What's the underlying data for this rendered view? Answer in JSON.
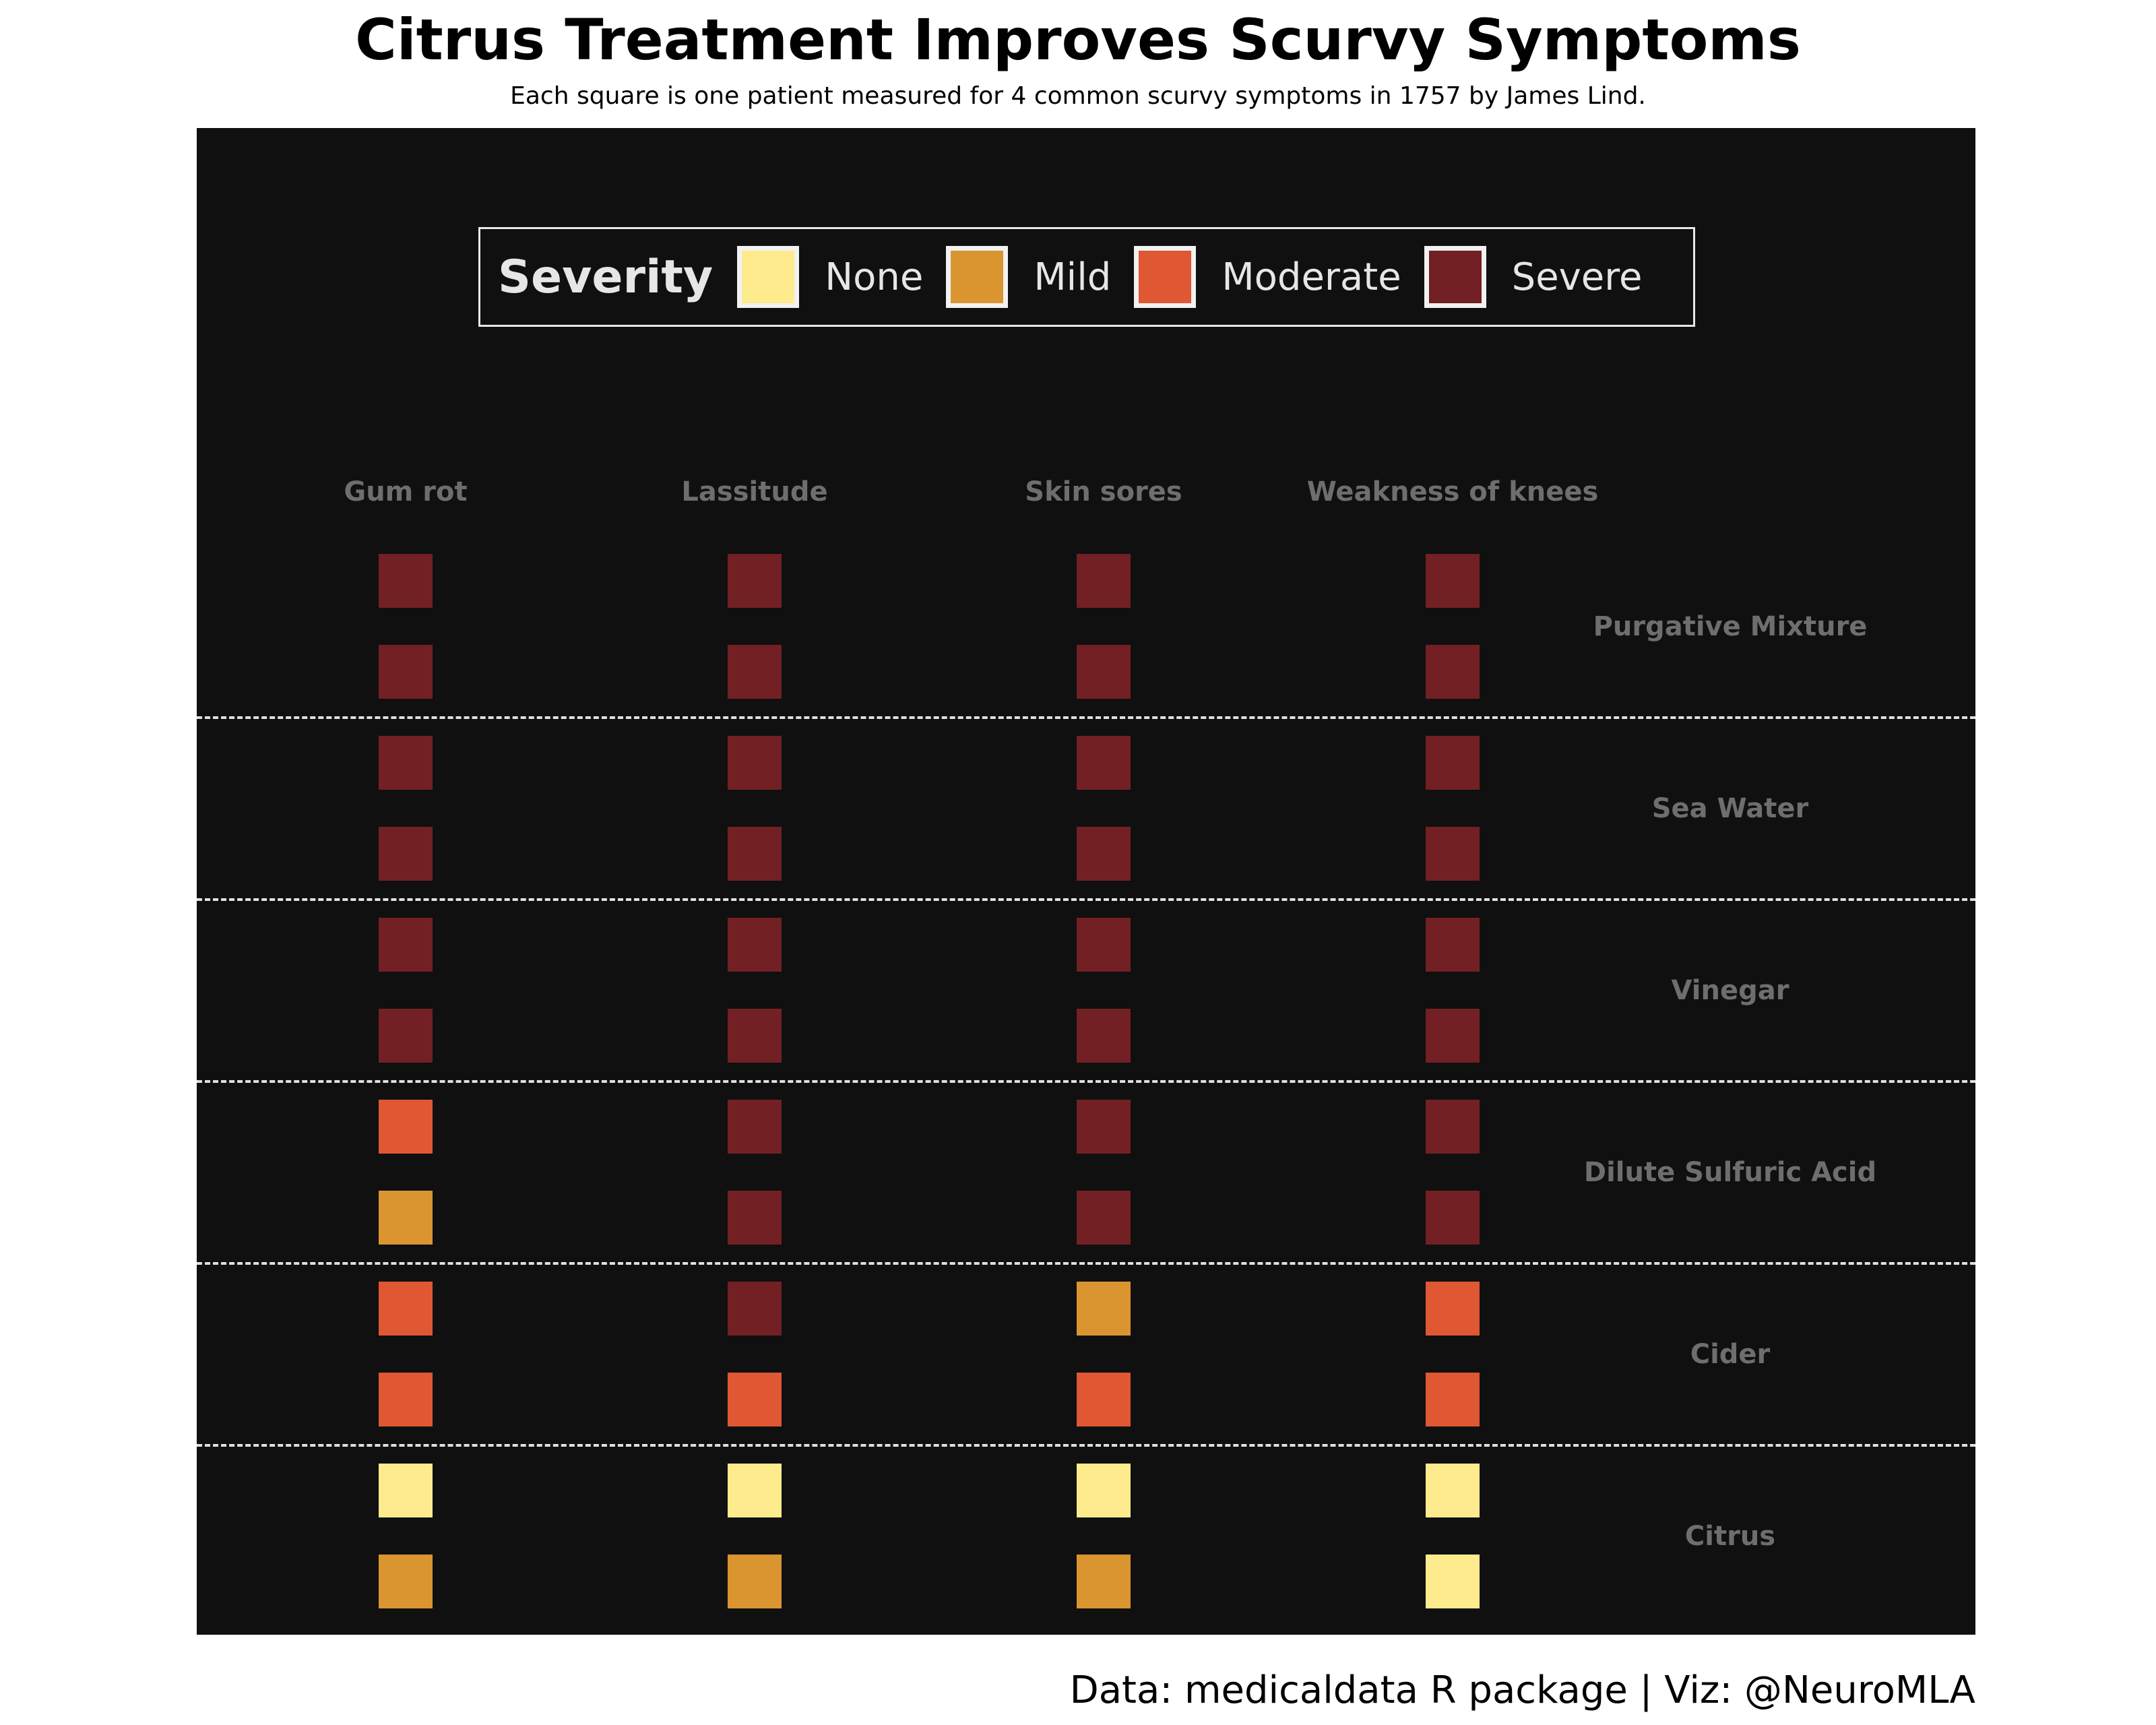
{
  "title": "Citrus Treatment Improves Scurvy Symptoms",
  "subtitle": "Each square is one patient measured for 4 common scurvy symptoms in 1757 by James Lind.",
  "caption": "Data: medicaldata R package | Viz: @NeuroMLA",
  "legend": {
    "title": "Severity",
    "items": [
      {
        "label": "None",
        "color": "#fdeb8e"
      },
      {
        "label": "Mild",
        "color": "#db9530"
      },
      {
        "label": "Moderate",
        "color": "#e05733"
      },
      {
        "label": "Severe",
        "color": "#722023"
      }
    ]
  },
  "colors": {
    "panel_background": "#101010",
    "label_text": "#6e6e6e",
    "divider": "#e0e0e0"
  },
  "chart_data": {
    "type": "heatmap",
    "title": "Citrus Treatment Improves Scurvy Symptoms",
    "subtitle": "Each square is one patient measured for 4 common scurvy symptoms in 1757 by James Lind.",
    "columns": [
      "Gum rot",
      "Lassitude",
      "Skin sores",
      "Weakness of knees"
    ],
    "severity_levels": [
      "None",
      "Mild",
      "Moderate",
      "Severe"
    ],
    "groups": [
      {
        "name": "Purgative Mixture",
        "patients": [
          [
            "Severe",
            "Severe",
            "Severe",
            "Severe"
          ],
          [
            "Severe",
            "Severe",
            "Severe",
            "Severe"
          ]
        ]
      },
      {
        "name": "Sea Water",
        "patients": [
          [
            "Severe",
            "Severe",
            "Severe",
            "Severe"
          ],
          [
            "Severe",
            "Severe",
            "Severe",
            "Severe"
          ]
        ]
      },
      {
        "name": "Vinegar",
        "patients": [
          [
            "Severe",
            "Severe",
            "Severe",
            "Severe"
          ],
          [
            "Severe",
            "Severe",
            "Severe",
            "Severe"
          ]
        ]
      },
      {
        "name": "Dilute Sulfuric Acid",
        "patients": [
          [
            "Moderate",
            "Severe",
            "Severe",
            "Severe"
          ],
          [
            "Mild",
            "Severe",
            "Severe",
            "Severe"
          ]
        ]
      },
      {
        "name": "Cider",
        "patients": [
          [
            "Moderate",
            "Severe",
            "Mild",
            "Moderate"
          ],
          [
            "Moderate",
            "Moderate",
            "Moderate",
            "Moderate"
          ]
        ]
      },
      {
        "name": "Citrus",
        "patients": [
          [
            "None",
            "None",
            "None",
            "None"
          ],
          [
            "Mild",
            "Mild",
            "Mild",
            "None"
          ]
        ]
      }
    ],
    "group_dividers": "dashed",
    "legend_position": "top-center"
  }
}
